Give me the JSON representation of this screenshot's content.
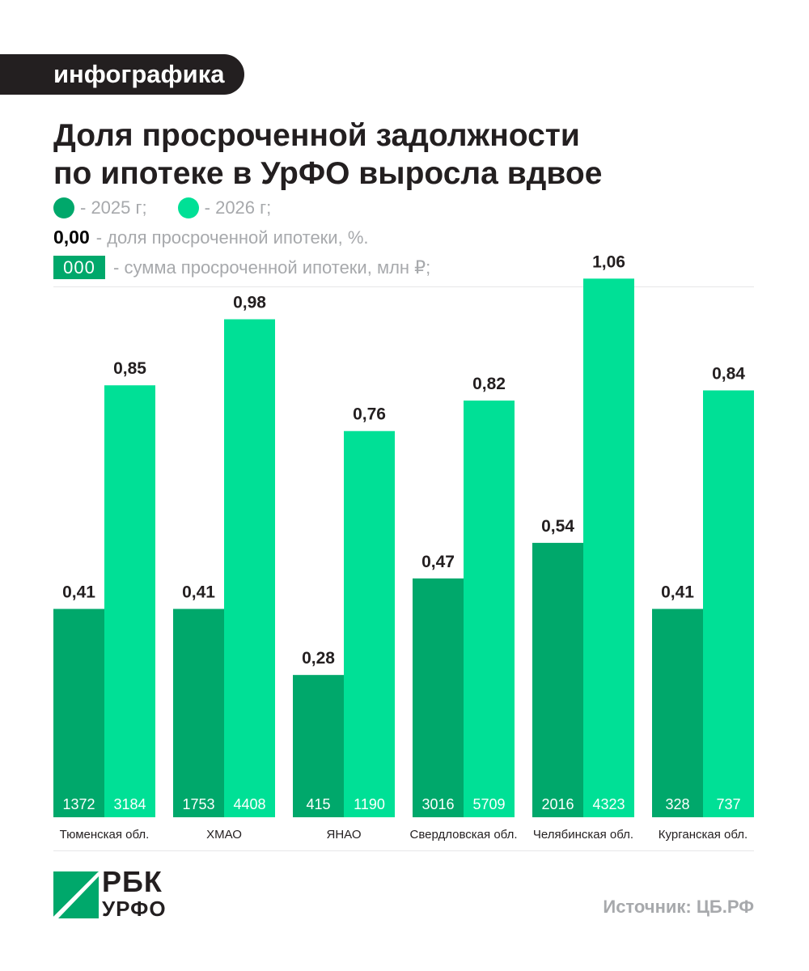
{
  "tag": "инфографика",
  "title_lines": [
    "Доля просроченной задолжности",
    "по ипотеке в УрФО выросла вдвое"
  ],
  "legend": {
    "y2025": "- 2025 г;",
    "y2026": "- 2026 г;",
    "share_sample": "0,00",
    "share_text": "- доля просроченной ипотеки, %.",
    "sum_sample": "000",
    "sum_text": "- сумма просроченной ипотеки, млн ₽;"
  },
  "colors": {
    "y2025": "#00a86b",
    "y2026": "#00e096",
    "dark": "#231f20",
    "grey": "#a7a9ac"
  },
  "chart_data": {
    "type": "bar",
    "categories": [
      "Тюменская обл.",
      "ХМАО",
      "ЯНАО",
      "Свердловская обл.",
      "Челябинская обл.",
      "Курганская обл."
    ],
    "series": [
      {
        "name": "2025 г",
        "values": [
          0.41,
          0.41,
          0.28,
          0.47,
          0.54,
          0.41
        ],
        "labels": [
          "0,41",
          "0,41",
          "0,28",
          "0,47",
          "0,54",
          "0,41"
        ],
        "sums": [
          "1372",
          "1753",
          "415",
          "3016",
          "2016",
          "328"
        ]
      },
      {
        "name": "2026 г",
        "values": [
          0.85,
          0.98,
          0.76,
          0.82,
          1.06,
          0.84
        ],
        "labels": [
          "0,85",
          "0,98",
          "0,76",
          "0,82",
          "1,06",
          "0,84"
        ],
        "sums": [
          "3184",
          "4408",
          "1190",
          "5709",
          "4323",
          "737"
        ]
      }
    ]
  },
  "logo": {
    "line1": "РБК",
    "line2": "УРФО"
  },
  "source": "Источник: ЦБ.РФ"
}
